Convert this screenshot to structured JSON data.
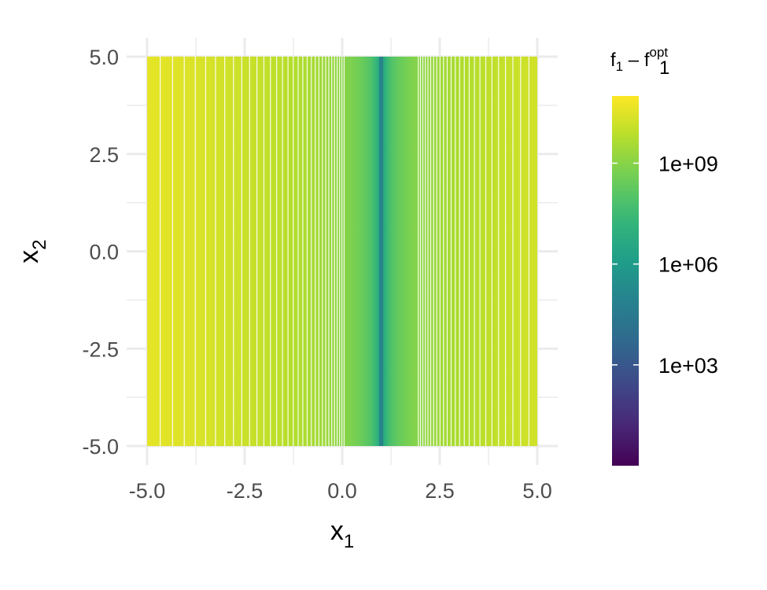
{
  "chart_data": {
    "type": "heatmap",
    "title": "",
    "xlabel_main": "x",
    "xlabel_sub": "1",
    "ylabel_main": "x",
    "ylabel_sub": "2",
    "xlim": [
      -5,
      5
    ],
    "ylim": [
      -5,
      5
    ],
    "x_ticks": [
      -5.0,
      -2.5,
      0.0,
      2.5,
      5.0
    ],
    "x_tick_labels": [
      "-5.0",
      "-2.5",
      "0.0",
      "2.5",
      "5.0"
    ],
    "y_ticks": [
      -5.0,
      -2.5,
      0.0,
      2.5,
      5.0
    ],
    "y_tick_labels": [
      "-5.0",
      "-2.5",
      "0.0",
      "2.5",
      "5.0"
    ],
    "grid": true,
    "optimum_x1": 1.0,
    "value_depends_on": "x1",
    "contour_lines": true,
    "colorscale": "viridis",
    "color_scale_type": "log10",
    "colorbar": {
      "title_main": "f",
      "title_sub": "1",
      "title_minus": " – ",
      "title_sup": "opt",
      "range_log10": [
        0,
        11
      ],
      "ticks_log10": [
        3,
        6,
        9
      ],
      "tick_labels": [
        "1e+03",
        "1e+06",
        "1e+09"
      ],
      "placement": "right"
    },
    "colors": {
      "viridis": [
        "#440154",
        "#482878",
        "#3e4989",
        "#31688e",
        "#26828e",
        "#1f9e89",
        "#35b779",
        "#6ece58",
        "#b5de2b",
        "#fde725"
      ],
      "grid": "#ebebeb",
      "tick_text": "#4d4d4d"
    }
  }
}
